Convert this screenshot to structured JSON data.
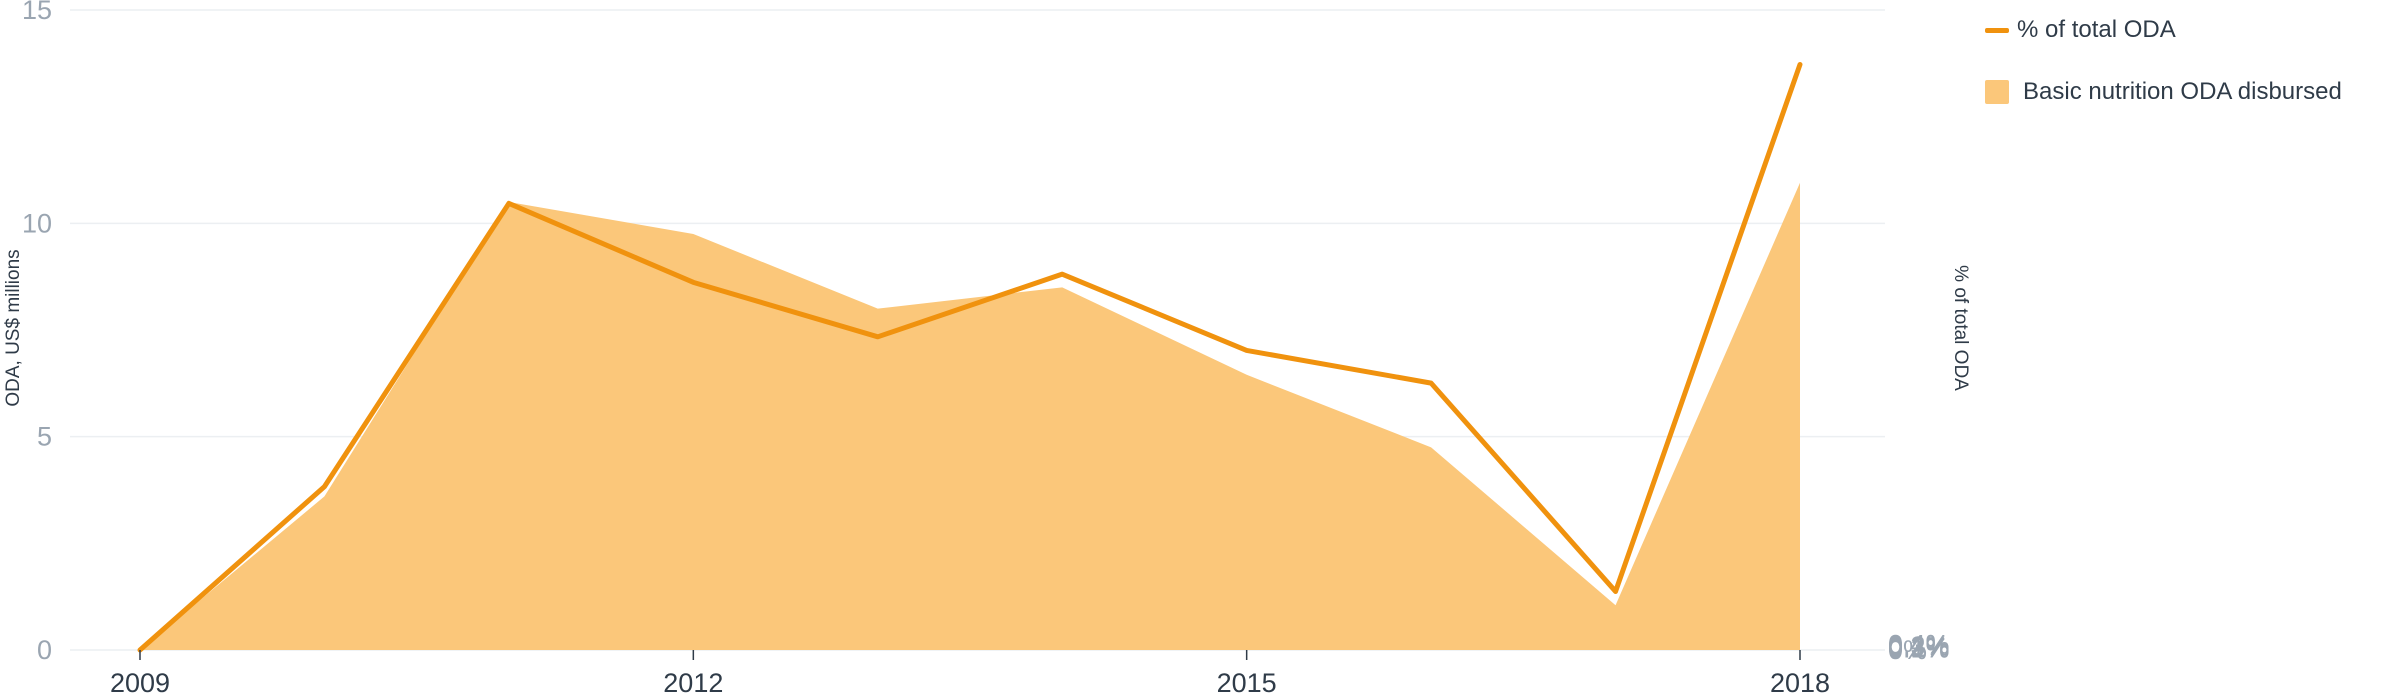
{
  "colors": {
    "line": "#f0920e",
    "area": "#fbc77a",
    "grid": "#eceff2"
  },
  "legend": {
    "line_label": "% of total ODA",
    "area_label": "Basic nutrition ODA disbursed"
  },
  "chart_data": {
    "type": "area",
    "title": "",
    "x": [
      2009,
      2010,
      2011,
      2012,
      2013,
      2014,
      2015,
      2016,
      2017,
      2018
    ],
    "x_ticks": [
      "2009",
      "2012",
      "2015",
      "2018"
    ],
    "left_axis": {
      "label": "ODA, US$ millions",
      "range": [
        0,
        15
      ],
      "ticks": [
        "0",
        "5",
        "10",
        "15"
      ]
    },
    "right_axis": {
      "label": "% of total ODA",
      "range": [
        0,
        0.47
      ],
      "ticks": [
        "0%",
        "0.1%",
        "0.2%",
        "0.3%",
        "0.4%"
      ]
    },
    "grid": true,
    "legend_position": "top-right",
    "series": [
      {
        "name": "Basic nutrition ODA disbursed",
        "type": "area",
        "axis": "left",
        "values": [
          0,
          3.6,
          10.5,
          9.75,
          8.0,
          8.5,
          6.45,
          4.75,
          1.05,
          10.95
        ]
      },
      {
        "name": "% of total ODA",
        "type": "line",
        "axis": "right",
        "values": [
          0,
          0.12,
          0.328,
          0.27,
          0.23,
          0.276,
          0.22,
          0.196,
          0.043,
          0.43
        ]
      }
    ]
  }
}
